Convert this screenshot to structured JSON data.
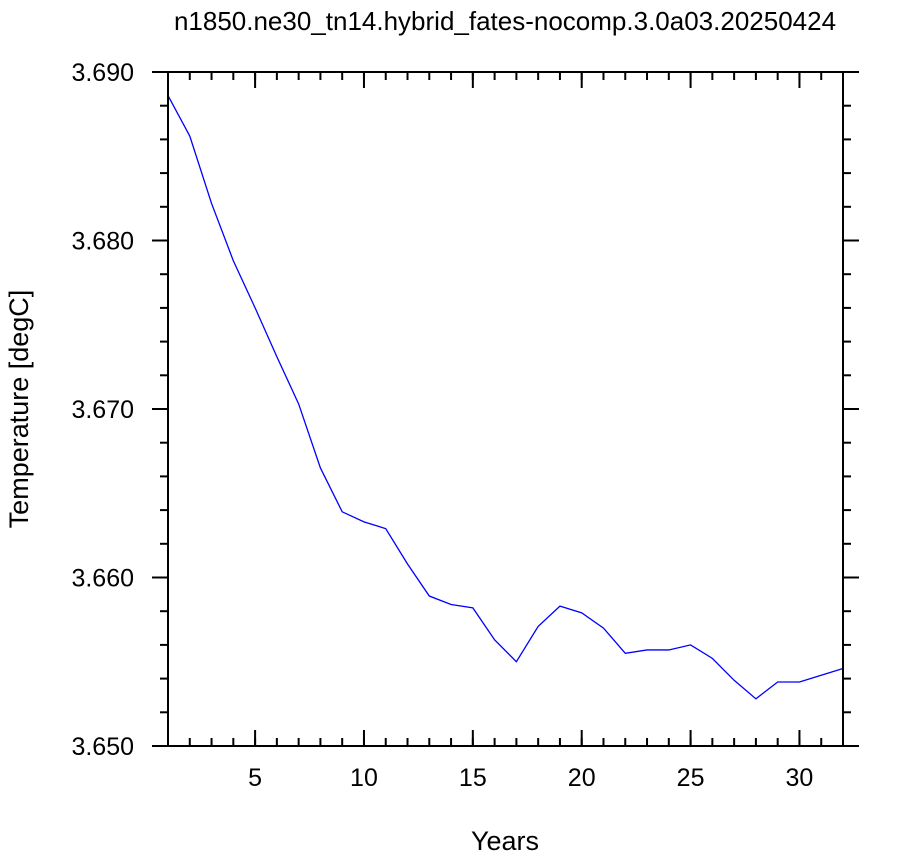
{
  "chart_data": {
    "type": "line",
    "title": "n1850.ne30_tn14.hybrid_fates-nocomp.3.0a03.20250424",
    "xlabel": "Years",
    "ylabel": "Temperature [degC]",
    "xlim": [
      1,
      32
    ],
    "ylim": [
      3.65,
      3.69
    ],
    "x_ticks": [
      5,
      10,
      15,
      20,
      25,
      30
    ],
    "x_tick_labels": [
      "5",
      "10",
      "15",
      "20",
      "25",
      "30"
    ],
    "y_ticks": [
      3.65,
      3.66,
      3.67,
      3.68,
      3.69
    ],
    "y_tick_labels": [
      "3.650",
      "3.660",
      "3.670",
      "3.680",
      "3.690"
    ],
    "grid": false,
    "series": [
      {
        "color": "#0000ff",
        "x": [
          1,
          2,
          3,
          4,
          5,
          6,
          7,
          8,
          9,
          10,
          11,
          12,
          13,
          14,
          15,
          16,
          17,
          18,
          19,
          20,
          21,
          22,
          23,
          24,
          25,
          26,
          27,
          28,
          29,
          30,
          31,
          32
        ],
        "values": [
          3.6886,
          3.6862,
          3.6822,
          3.6788,
          3.676,
          3.6731,
          3.6703,
          3.6665,
          3.6639,
          3.6633,
          3.6629,
          3.6608,
          3.6589,
          3.6584,
          3.6582,
          3.6563,
          3.655,
          3.6571,
          3.6583,
          3.6579,
          3.657,
          3.6555,
          3.6557,
          3.6557,
          3.656,
          3.6552,
          3.6539,
          3.6528,
          3.6538,
          3.6538,
          3.6542,
          3.6546
        ]
      }
    ]
  }
}
